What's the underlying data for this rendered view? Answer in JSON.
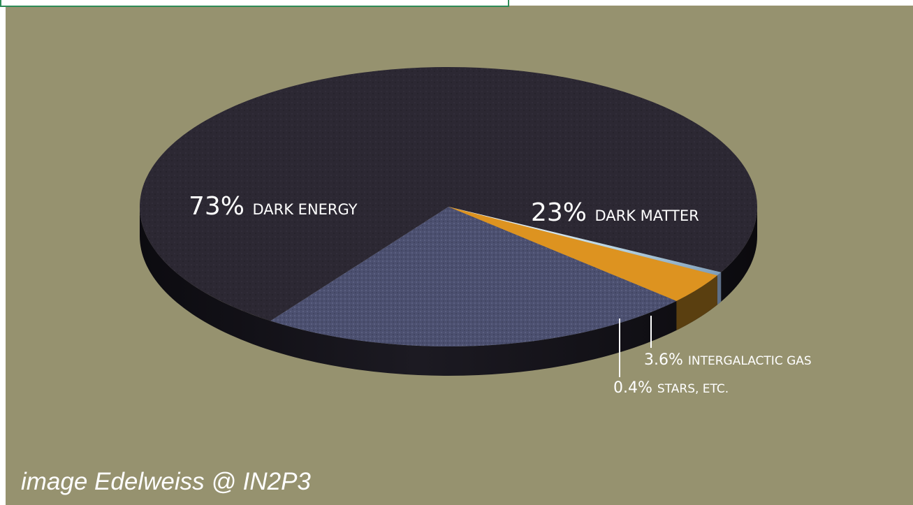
{
  "credit": "image Edelweiss @ IN2P3",
  "colors": {
    "background": "#96926f",
    "dark_energy": "#2c2833",
    "dark_matter": "#4c5070",
    "intergalactic_gas": "#dd9320",
    "stars": "#cfe3ec",
    "label": "#ffffff"
  },
  "chart_data": {
    "type": "pie",
    "style": "3d",
    "slices": [
      {
        "pct": "73%",
        "label": "DARK ENERGY",
        "value": 73,
        "color": "#2c2833"
      },
      {
        "pct": "23%",
        "label": "DARK MATTER",
        "value": 23,
        "color": "#4c5070"
      },
      {
        "pct": "3.6%",
        "label": "INTERGALACTIC GAS",
        "value": 3.6,
        "color": "#dd9320"
      },
      {
        "pct": "0.4%",
        "label": "STARS, ETC.",
        "value": 0.4,
        "color": "#cfe3ec"
      }
    ]
  }
}
